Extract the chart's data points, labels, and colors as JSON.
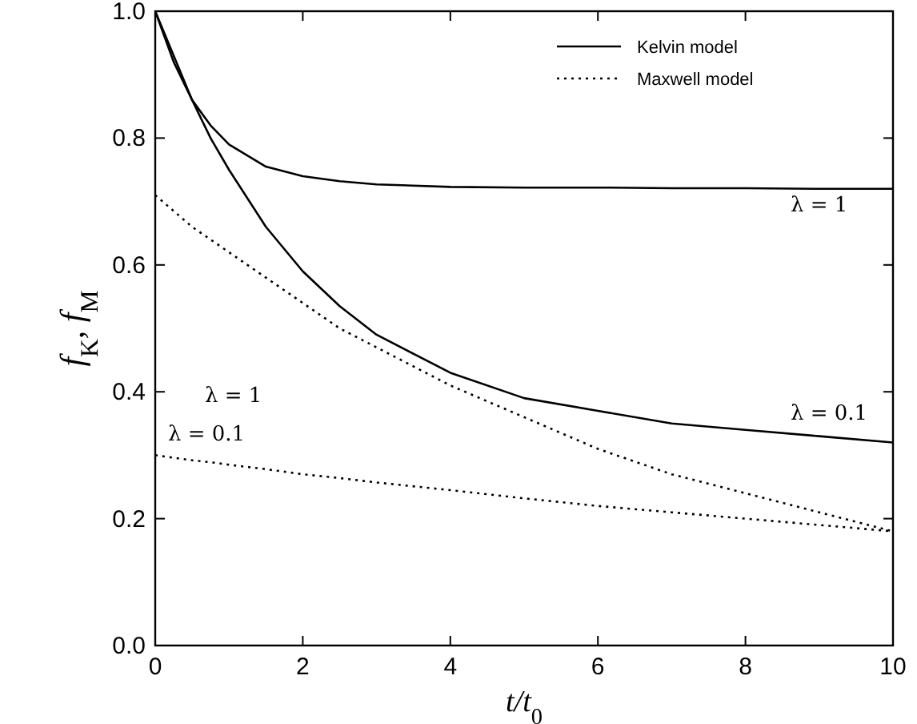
{
  "chart_data": {
    "type": "line",
    "xlabel": "t/t$_{0}$",
    "ylabel": "f$_{K}$, f$_{M}$",
    "x": [
      0,
      0.25,
      0.5,
      0.75,
      1,
      1.5,
      2,
      2.5,
      3,
      4,
      5,
      6,
      7,
      8,
      9,
      10
    ],
    "series": [
      {
        "name": "Kelvin model",
        "color": "#000000",
        "line_style": "solid",
        "values": [
          1,
          0.92,
          0.86,
          0.82,
          0.79,
          0.755,
          0.74,
          0.732,
          0.727,
          0.723,
          0.722,
          0.722,
          0.721,
          0.721,
          0.72,
          0.72
        ]
      },
      {
        "color": "#000000",
        "line_style": "solid",
        "values": [
          1,
          0.93,
          0.86,
          0.8,
          0.75,
          0.66,
          0.59,
          0.535,
          0.49,
          0.43,
          0.39,
          0.37,
          0.35,
          0.34,
          0.33,
          0.32
        ]
      },
      {
        "name": "Maxwell model",
        "color": "#000000",
        "line_style": "dotted",
        "values": [
          0.71,
          0.685,
          0.66,
          0.64,
          0.62,
          0.58,
          0.54,
          0.5,
          0.47,
          0.41,
          0.36,
          0.31,
          0.27,
          0.24,
          0.21,
          0.18
        ]
      },
      {
        "color": "#000000",
        "line_style": "dotted",
        "values": [
          0.3,
          0.296,
          0.292,
          0.289,
          0.285,
          0.278,
          0.27,
          0.264,
          0.257,
          0.245,
          0.232,
          0.22,
          0.21,
          0.2,
          0.19,
          0.18
        ]
      }
    ],
    "xlim": [
      0,
      10
    ],
    "xticks": [
      0,
      2,
      4,
      6,
      8,
      10
    ],
    "ylim": [
      0,
      1
    ],
    "yticks": [
      {
        "value": 0,
        "label": "0.0"
      },
      {
        "value": 0.2,
        "label": "0.2"
      },
      {
        "value": 0.4,
        "label": "0.4"
      },
      {
        "value": 0.6,
        "label": "0.6"
      },
      {
        "value": 0.8,
        "label": "0.8"
      },
      {
        "value": 1,
        "label": "1.0"
      }
    ],
    "legend": "top right",
    "grid": false,
    "marker": "none",
    "annotations": [
      "λ = 1",
      "λ = 0.1",
      "λ = 1",
      "λ = 0.1"
    ]
  }
}
